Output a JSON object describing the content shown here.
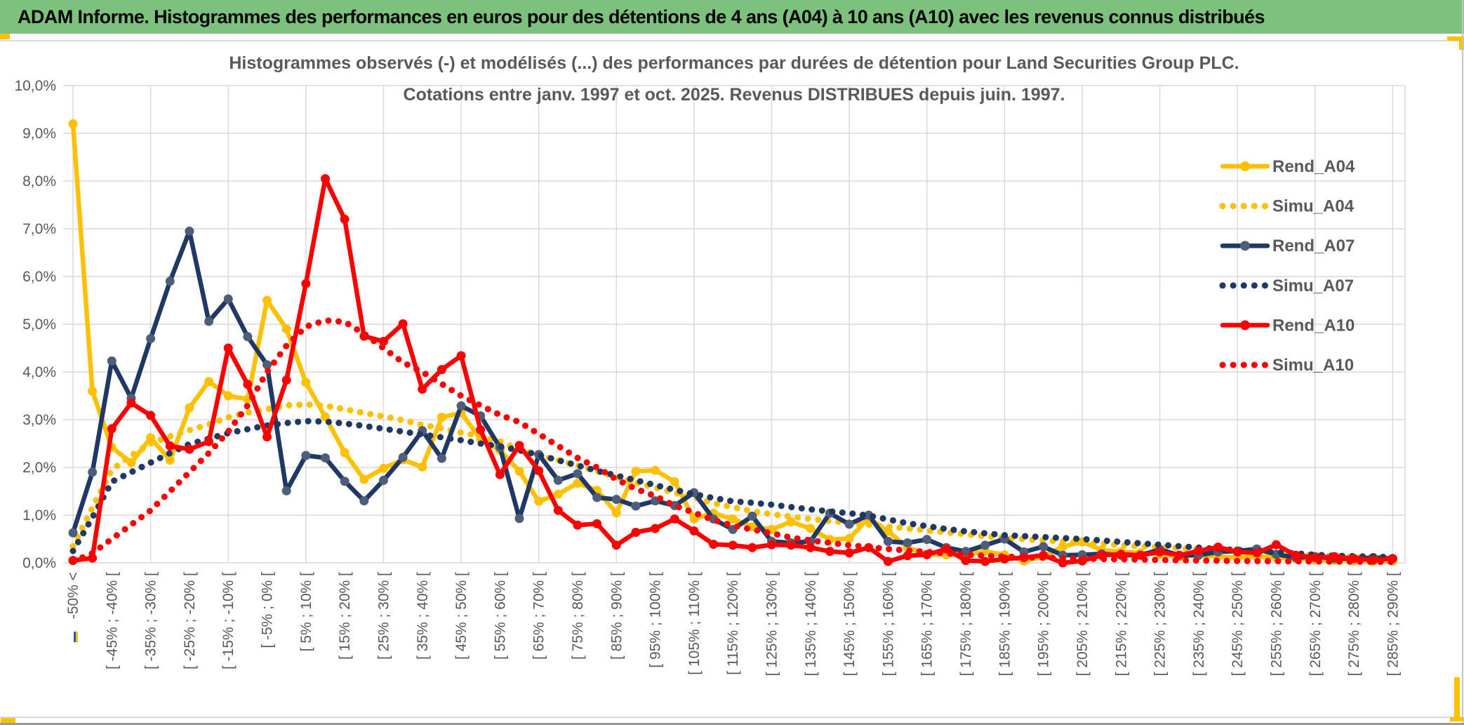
{
  "window": {
    "title": "ADAM Informe. Histogrammes des performances en euros pour des détentions de 4 ans (A04) à 10 ans (A10) avec les revenus connus distribués"
  },
  "colors": {
    "header_green": "#7CC17C",
    "accent_gold": "#FFC000",
    "series_gold": "#FFC000",
    "series_navy": "#1F3864",
    "navy_marker": "#4D5D7A",
    "series_red": "#FF0000",
    "grid_grey": "#D9D9D9",
    "text_grey": "#595959"
  },
  "chart_data": {
    "type": "line",
    "title_line1": "Histogrammes observés (-) et modélisés (...) des performances par durées de détention pour Land Securities Group PLC.",
    "title_line2": "Cotations entre janv. 1997 et oct. 2025. Revenus DISTRIBUES depuis juin. 1997.",
    "ylabel": "",
    "xlabel": "",
    "ylim": [
      0,
      10
    ],
    "grid": true,
    "legend_position": "right",
    "y_ticks": [
      "10,0%",
      "9,0%",
      "8,0%",
      "7,0%",
      "6,0%",
      "5,0%",
      "4,0%",
      "3,0%",
      "2,0%",
      "1,0%",
      "0,0%"
    ],
    "x_labels": [
      "-50% <",
      "[ -45% ; -40% [",
      "[ -35% ; -30% [",
      "[ -25% ; -20% [",
      "[ -15% ; -10% [",
      "[ -5% ; 0% [",
      "[ 5% ; 10% [",
      "[ 15% ; 20% [",
      "[ 25% ; 30% [",
      "[ 35% ; 40% [",
      "[ 45% ; 50% [",
      "[ 55% ; 60% [",
      "[ 65% ; 70% [",
      "[ 75% ; 80% [",
      "[ 85% ; 90% [",
      "[ 95% ; 100% [",
      "[ 105% ; 110% [",
      "[ 115% ; 120% [",
      "[ 125% ; 130% [",
      "[ 135% ; 140% [",
      "[ 145% ; 150% [",
      "[ 155% ; 160% [",
      "[ 165% ; 170% [",
      "[ 175% ; 180% [",
      "[ 185% ; 190% [",
      "[ 195% ; 200% [",
      "[ 205% ; 210% [",
      "[ 215% ; 220% [",
      "[ 225% ; 230% [",
      "[ 235% ; 240% [",
      "[ 245% ; 250% [",
      "[ 255% ; 260% [",
      "[ 265% ; 270% [",
      "[ 275% ; 280% [",
      "[ 285% ; 290% ["
    ],
    "x_label_every": 2,
    "n_points": 69,
    "series": [
      {
        "name": "Rend_A04",
        "style": "solid",
        "color": "#FFC000",
        "marker": "#FFC000",
        "values": [
          9.2,
          3.6,
          2.42,
          2.1,
          2.62,
          2.15,
          3.25,
          3.8,
          3.5,
          3.43,
          5.5,
          4.9,
          3.78,
          3.06,
          2.31,
          1.75,
          1.98,
          2.16,
          2.01,
          3.05,
          3.14,
          2.6,
          2.36,
          1.92,
          1.29,
          1.44,
          1.67,
          1.52,
          1.05,
          1.92,
          1.94,
          1.7,
          0.92,
          1.04,
          0.92,
          0.76,
          0.7,
          0.86,
          0.72,
          0.49,
          0.51,
          0.94,
          0.66,
          0.32,
          0.18,
          0.17,
          0.17,
          0.24,
          0.17,
          0.04,
          0.13,
          0.34,
          0.44,
          0.27,
          0.23,
          0.21,
          0.18,
          0.13,
          0.16,
          0.13,
          0.11,
          0.13,
          0.11,
          0.09,
          0.06,
          0.05,
          0.04,
          0.03,
          0.04
        ]
      },
      {
        "name": "Simu_A04",
        "style": "dotted",
        "color": "#FFC000",
        "values": [
          0.35,
          1.15,
          1.95,
          2.25,
          2.5,
          2.65,
          2.78,
          2.9,
          3.05,
          3.15,
          3.22,
          3.3,
          3.32,
          3.29,
          3.22,
          3.14,
          3.07,
          2.99,
          2.89,
          2.82,
          2.73,
          2.65,
          2.55,
          2.37,
          2.26,
          2.15,
          2.04,
          1.92,
          1.8,
          1.68,
          1.58,
          1.47,
          1.37,
          1.25,
          1.17,
          1.08,
          1.02,
          0.97,
          0.92,
          0.88,
          0.84,
          0.8,
          0.76,
          0.72,
          0.68,
          0.64,
          0.6,
          0.56,
          0.53,
          0.5,
          0.47,
          0.45,
          0.42,
          0.4,
          0.37,
          0.35,
          0.33,
          0.31,
          0.28,
          0.26,
          0.24,
          0.22,
          0.2,
          0.18,
          0.16,
          0.14,
          0.12,
          0.11,
          0.1
        ]
      },
      {
        "name": "Rend_A07",
        "style": "solid",
        "color": "#1F3864",
        "marker": "#4D5D7A",
        "values": [
          0.63,
          1.9,
          4.23,
          3.45,
          4.7,
          5.9,
          6.95,
          5.06,
          5.53,
          4.74,
          4.15,
          1.51,
          2.25,
          2.2,
          1.71,
          1.3,
          1.73,
          2.21,
          2.77,
          2.19,
          3.29,
          3.08,
          2.42,
          0.93,
          2.27,
          1.73,
          1.87,
          1.37,
          1.33,
          1.19,
          1.3,
          1.2,
          1.47,
          0.92,
          0.7,
          0.98,
          0.45,
          0.42,
          0.45,
          1.04,
          0.81,
          1.0,
          0.45,
          0.42,
          0.49,
          0.32,
          0.24,
          0.37,
          0.5,
          0.23,
          0.34,
          0.16,
          0.17,
          0.19,
          0.16,
          0.16,
          0.28,
          0.16,
          0.16,
          0.23,
          0.25,
          0.29,
          0.18,
          0.11,
          0.13,
          0.09,
          0.09,
          0.11,
          0.09
        ]
      },
      {
        "name": "Simu_A07",
        "style": "dotted",
        "color": "#1F3864",
        "values": [
          0.25,
          0.95,
          1.7,
          1.9,
          2.1,
          2.3,
          2.49,
          2.6,
          2.72,
          2.8,
          2.88,
          2.93,
          2.97,
          2.96,
          2.92,
          2.87,
          2.81,
          2.75,
          2.69,
          2.63,
          2.57,
          2.5,
          2.44,
          2.36,
          2.26,
          2.15,
          2.04,
          1.93,
          1.83,
          1.73,
          1.63,
          1.53,
          1.44,
          1.36,
          1.29,
          1.26,
          1.22,
          1.17,
          1.12,
          1.08,
          1.04,
          0.99,
          0.91,
          0.83,
          0.77,
          0.71,
          0.66,
          0.62,
          0.58,
          0.56,
          0.54,
          0.52,
          0.5,
          0.47,
          0.44,
          0.41,
          0.38,
          0.35,
          0.32,
          0.29,
          0.27,
          0.25,
          0.22,
          0.2,
          0.17,
          0.15,
          0.14,
          0.13,
          0.12
        ]
      },
      {
        "name": "Rend_A10",
        "style": "solid",
        "color": "#FF0000",
        "marker": "#FF0000",
        "values": [
          0.05,
          0.1,
          2.81,
          3.35,
          3.09,
          2.45,
          2.38,
          2.54,
          4.5,
          3.74,
          2.64,
          3.83,
          5.85,
          8.05,
          7.2,
          4.75,
          4.64,
          5.01,
          3.64,
          4.05,
          4.34,
          2.79,
          1.85,
          2.46,
          1.93,
          1.1,
          0.79,
          0.82,
          0.37,
          0.64,
          0.72,
          0.92,
          0.67,
          0.39,
          0.37,
          0.32,
          0.38,
          0.37,
          0.32,
          0.24,
          0.21,
          0.32,
          0.03,
          0.15,
          0.17,
          0.29,
          0.05,
          0.03,
          0.08,
          0.11,
          0.16,
          0.0,
          0.04,
          0.16,
          0.18,
          0.16,
          0.23,
          0.16,
          0.25,
          0.33,
          0.23,
          0.21,
          0.38,
          0.16,
          0.11,
          0.13,
          0.09,
          0.06,
          0.09
        ]
      },
      {
        "name": "Simu_A10",
        "style": "dotted",
        "color": "#FF0000",
        "values": [
          0.03,
          0.2,
          0.5,
          0.8,
          1.1,
          1.5,
          1.9,
          2.3,
          2.75,
          3.3,
          4.0,
          4.55,
          4.95,
          5.08,
          5.05,
          4.8,
          4.5,
          4.2,
          4.0,
          3.75,
          3.5,
          3.3,
          3.1,
          2.95,
          2.7,
          2.45,
          2.2,
          2.0,
          1.75,
          1.55,
          1.4,
          1.2,
          1.05,
          0.9,
          0.78,
          0.7,
          0.62,
          0.53,
          0.47,
          0.42,
          0.37,
          0.33,
          0.29,
          0.26,
          0.23,
          0.2,
          0.17,
          0.15,
          0.13,
          0.12,
          0.11,
          0.1,
          0.09,
          0.08,
          0.075,
          0.07,
          0.06,
          0.055,
          0.05,
          0.045,
          0.04,
          0.038,
          0.035,
          0.032,
          0.03,
          0.027,
          0.025,
          0.022,
          0.02
        ]
      }
    ]
  }
}
